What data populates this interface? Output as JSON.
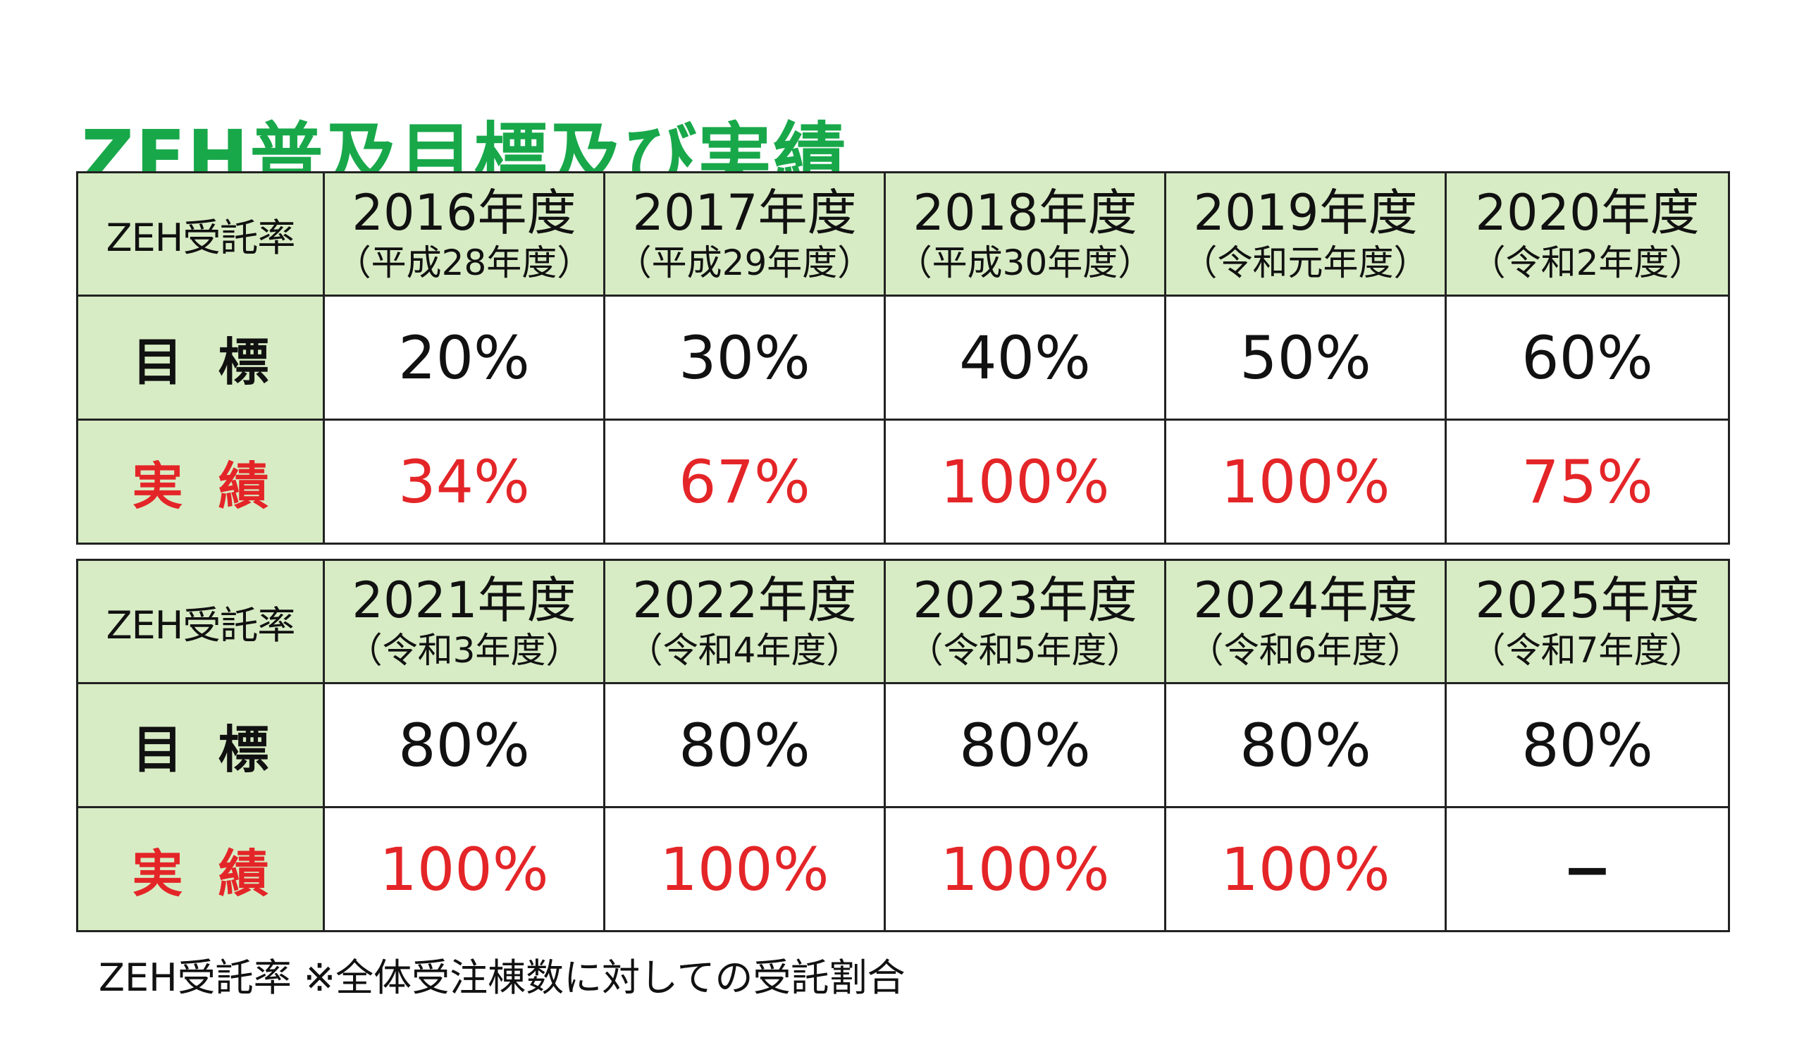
{
  "title": "ZEH普及目標及び実績",
  "tables": [
    {
      "corner_label": "ZEH受託率",
      "years": [
        {
          "year": "2016年度",
          "era": "（平成28年度）"
        },
        {
          "year": "2017年度",
          "era": "（平成29年度）"
        },
        {
          "year": "2018年度",
          "era": "（平成30年度）"
        },
        {
          "year": "2019年度",
          "era": "（令和元年度）"
        },
        {
          "year": "2020年度",
          "era": "（令和2年度）"
        }
      ],
      "target_label": "目標",
      "targets": [
        "20%",
        "30%",
        "40%",
        "50%",
        "60%"
      ],
      "actual_label": "実績",
      "actuals": [
        "34%",
        "67%",
        "100%",
        "100%",
        "75%"
      ]
    },
    {
      "corner_label": "ZEH受託率",
      "years": [
        {
          "year": "2021年度",
          "era": "（令和3年度）"
        },
        {
          "year": "2022年度",
          "era": "（令和4年度）"
        },
        {
          "year": "2023年度",
          "era": "（令和5年度）"
        },
        {
          "year": "2024年度",
          "era": "（令和6年度）"
        },
        {
          "year": "2025年度",
          "era": "（令和7年度）"
        }
      ],
      "target_label": "目標",
      "targets": [
        "80%",
        "80%",
        "80%",
        "80%",
        "80%"
      ],
      "actual_label": "実績",
      "actuals": [
        "100%",
        "100%",
        "100%",
        "100%",
        "−"
      ]
    }
  ],
  "footnote": "ZEH受託率 ※全体受注棟数に対しての受託割合",
  "colors": {
    "title": "#18a84a",
    "header_background": "#d7ecc4",
    "actual_text": "#e42528",
    "border": "#222222"
  }
}
